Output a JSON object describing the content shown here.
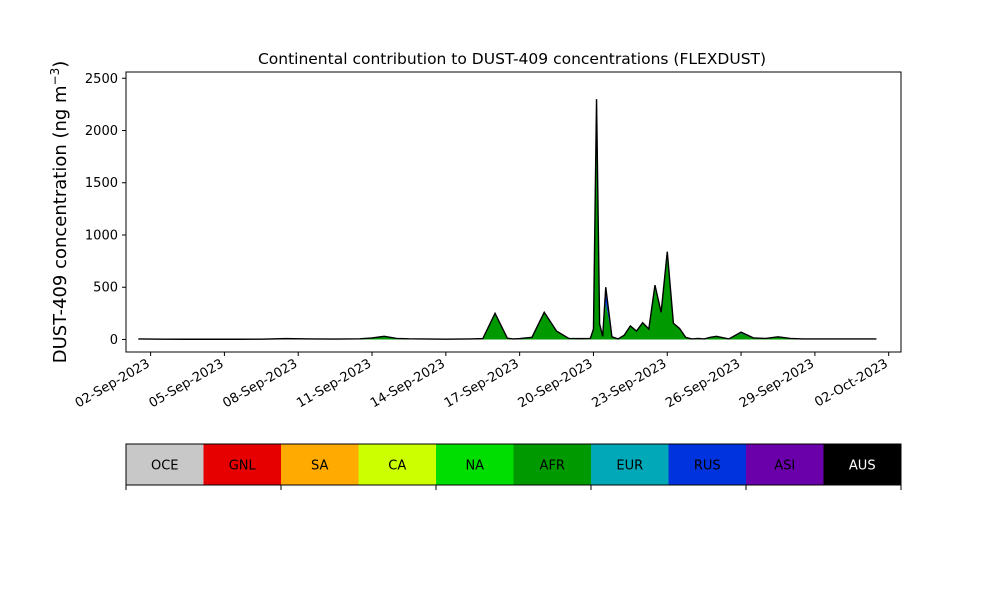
{
  "chart_data": {
    "type": "area",
    "title": "Continental contribution to DUST-409 concentrations (FLEXDUST)",
    "ylabel": "DUST-409 concentration (ng m",
    "ylabel_sup": "−3",
    "ylabel_close": ")",
    "ylim": [
      -120,
      2560
    ],
    "yticks": [
      0,
      500,
      1000,
      1500,
      2000,
      2500
    ],
    "x_range": [
      "2023-09-01T00:00",
      "2023-10-02T12:00"
    ],
    "xticks": [
      "02-Sep-2023",
      "05-Sep-2023",
      "08-Sep-2023",
      "11-Sep-2023",
      "14-Sep-2023",
      "17-Sep-2023",
      "20-Sep-2023",
      "23-Sep-2023",
      "26-Sep-2023",
      "29-Sep-2023",
      "02-Oct-2023"
    ],
    "xtick_dates": [
      "2023-09-02",
      "2023-09-05",
      "2023-09-08",
      "2023-09-11",
      "2023-09-14",
      "2023-09-17",
      "2023-09-20",
      "2023-09-23",
      "2023-09-26",
      "2023-09-29",
      "2023-10-02"
    ],
    "grid": false,
    "legend_placement": "bottom",
    "x": [
      "2023-09-01T12:00",
      "2023-09-02T12:00",
      "2023-09-03T12:00",
      "2023-09-04T12:00",
      "2023-09-05T12:00",
      "2023-09-06T12:00",
      "2023-09-07T12:00",
      "2023-09-08T12:00",
      "2023-09-09T12:00",
      "2023-09-10T12:00",
      "2023-09-11T00:00",
      "2023-09-11T12:00",
      "2023-09-12T00:00",
      "2023-09-12T12:00",
      "2023-09-13T00:00",
      "2023-09-13T12:00",
      "2023-09-14T00:00",
      "2023-09-14T12:00",
      "2023-09-15T00:00",
      "2023-09-15T12:00",
      "2023-09-16T00:00",
      "2023-09-16T12:00",
      "2023-09-16T18:00",
      "2023-09-17T00:00",
      "2023-09-17T12:00",
      "2023-09-18T00:00",
      "2023-09-18T12:00",
      "2023-09-19T00:00",
      "2023-09-19T12:00",
      "2023-09-19T21:00",
      "2023-09-20T00:00",
      "2023-09-20T03:00",
      "2023-09-20T06:00",
      "2023-09-20T09:00",
      "2023-09-20T12:00",
      "2023-09-20T18:00",
      "2023-09-21T00:00",
      "2023-09-21T06:00",
      "2023-09-21T12:00",
      "2023-09-21T18:00",
      "2023-09-22T00:00",
      "2023-09-22T06:00",
      "2023-09-22T12:00",
      "2023-09-22T18:00",
      "2023-09-23T00:00",
      "2023-09-23T06:00",
      "2023-09-23T12:00",
      "2023-09-23T18:00",
      "2023-09-24T00:00",
      "2023-09-24T06:00",
      "2023-09-24T12:00",
      "2023-09-24T18:00",
      "2023-09-25T00:00",
      "2023-09-25T12:00",
      "2023-09-26T00:00",
      "2023-09-26T12:00",
      "2023-09-27T00:00",
      "2023-09-27T12:00",
      "2023-09-28T00:00",
      "2023-09-28T12:00",
      "2023-09-29T00:00",
      "2023-09-29T12:00",
      "2023-09-30T00:00",
      "2023-09-30T12:00",
      "2023-10-01T00:00",
      "2023-10-01T12:00"
    ],
    "series": [
      {
        "name": "OCE",
        "color": "#c8c8c8",
        "values": [
          0,
          0,
          0,
          0,
          0,
          0,
          0,
          0,
          0,
          0,
          0,
          0,
          0,
          0,
          0,
          0,
          0,
          0,
          0,
          0,
          0,
          0,
          0,
          0,
          0,
          0,
          0,
          0,
          0,
          0,
          0,
          0,
          0,
          0,
          0,
          0,
          0,
          0,
          0,
          0,
          0,
          0,
          0,
          0,
          0,
          0,
          0,
          0,
          0,
          0,
          0,
          0,
          0,
          0,
          0,
          0,
          0,
          0,
          0,
          0,
          0,
          0,
          0,
          0,
          0,
          0
        ]
      },
      {
        "name": "GNL",
        "color": "#e60000",
        "values": [
          0,
          0,
          0,
          0,
          0,
          0,
          0,
          0,
          0,
          0,
          0,
          0,
          0,
          0,
          0,
          0,
          0,
          0,
          0,
          0,
          0,
          0,
          0,
          0,
          0,
          0,
          0,
          0,
          0,
          0,
          0,
          0,
          0,
          0,
          0,
          0,
          0,
          0,
          0,
          0,
          0,
          0,
          0,
          0,
          0,
          0,
          0,
          0,
          0,
          0,
          0,
          0,
          0,
          0,
          0,
          0,
          0,
          0,
          0,
          0,
          0,
          0,
          0,
          0,
          0,
          0
        ]
      },
      {
        "name": "SA",
        "color": "#ffaa00",
        "values": [
          0,
          0,
          0,
          0,
          0,
          0,
          0,
          0,
          0,
          0,
          0,
          0,
          0,
          0,
          0,
          0,
          0,
          0,
          0,
          0,
          0,
          0,
          0,
          0,
          0,
          0,
          0,
          0,
          0,
          0,
          0,
          0,
          0,
          0,
          0,
          0,
          0,
          0,
          0,
          0,
          0,
          0,
          0,
          0,
          0,
          0,
          0,
          0,
          0,
          0,
          0,
          0,
          0,
          0,
          0,
          0,
          0,
          0,
          0,
          0,
          0,
          0,
          0,
          0,
          0,
          0
        ]
      },
      {
        "name": "CA",
        "color": "#ccff00",
        "values": [
          0,
          0,
          0,
          0,
          0,
          0,
          0,
          0,
          0,
          0,
          0,
          0,
          0,
          0,
          0,
          0,
          0,
          0,
          0,
          0,
          0,
          0,
          0,
          0,
          0,
          0,
          0,
          0,
          0,
          0,
          0,
          0,
          0,
          0,
          0,
          0,
          0,
          0,
          0,
          0,
          0,
          0,
          0,
          0,
          0,
          0,
          0,
          0,
          0,
          0,
          0,
          0,
          0,
          0,
          0,
          0,
          0,
          0,
          0,
          0,
          0,
          0,
          0,
          0,
          0,
          0
        ]
      },
      {
        "name": "NA",
        "color": "#00dd00",
        "values": [
          0,
          0,
          0,
          0,
          0,
          0,
          0,
          0,
          0,
          0,
          0,
          0,
          0,
          0,
          0,
          0,
          0,
          0,
          0,
          0,
          0,
          0,
          0,
          0,
          0,
          0,
          0,
          0,
          0,
          0,
          0,
          0,
          0,
          0,
          0,
          0,
          0,
          0,
          0,
          0,
          0,
          0,
          0,
          0,
          0,
          0,
          0,
          0,
          0,
          0,
          0,
          0,
          0,
          0,
          0,
          0,
          0,
          0,
          0,
          0,
          0,
          0,
          0,
          0,
          0,
          0
        ]
      },
      {
        "name": "AFR",
        "color": "#009900",
        "values": [
          5,
          3,
          2,
          2,
          2,
          3,
          8,
          5,
          4,
          6,
          15,
          30,
          10,
          6,
          5,
          4,
          3,
          4,
          5,
          8,
          250,
          12,
          5,
          8,
          20,
          260,
          80,
          10,
          8,
          10,
          100,
          2300,
          150,
          30,
          350,
          20,
          5,
          40,
          130,
          80,
          160,
          100,
          500,
          250,
          800,
          150,
          100,
          20,
          5,
          10,
          5,
          20,
          30,
          5,
          60,
          10,
          10,
          20,
          10,
          5,
          5,
          5,
          5,
          5,
          5,
          5
        ]
      },
      {
        "name": "EUR",
        "color": "#00a8b8",
        "values": [
          0,
          0,
          0,
          0,
          0,
          0,
          0,
          0,
          0,
          0,
          0,
          0,
          0,
          0,
          0,
          0,
          0,
          0,
          0,
          0,
          0,
          0,
          0,
          0,
          0,
          0,
          0,
          0,
          0,
          0,
          0,
          0,
          0,
          0,
          0,
          0,
          0,
          0,
          0,
          0,
          0,
          0,
          0,
          0,
          0,
          0,
          0,
          0,
          0,
          0,
          0,
          0,
          0,
          0,
          0,
          0,
          0,
          0,
          0,
          0,
          0,
          0,
          0,
          0,
          0,
          0
        ]
      },
      {
        "name": "RUS",
        "color": "#0033dd",
        "values": [
          0,
          0,
          0,
          0,
          0,
          0,
          0,
          0,
          0,
          0,
          0,
          0,
          0,
          0,
          0,
          0,
          0,
          0,
          0,
          0,
          0,
          0,
          0,
          0,
          0,
          0,
          0,
          0,
          0,
          0,
          0,
          0,
          0,
          0,
          150,
          5,
          0,
          0,
          0,
          0,
          0,
          0,
          20,
          10,
          40,
          5,
          5,
          0,
          0,
          0,
          0,
          0,
          0,
          0,
          10,
          5,
          0,
          5,
          0,
          0,
          0,
          0,
          0,
          0,
          0,
          0
        ]
      },
      {
        "name": "ASI",
        "color": "#6a00aa",
        "values": [
          0,
          0,
          0,
          0,
          0,
          0,
          0,
          0,
          0,
          0,
          0,
          0,
          0,
          0,
          0,
          0,
          0,
          0,
          0,
          0,
          0,
          0,
          0,
          0,
          0,
          0,
          0,
          0,
          0,
          0,
          0,
          0,
          0,
          0,
          0,
          0,
          0,
          0,
          0,
          0,
          0,
          0,
          0,
          0,
          0,
          0,
          0,
          0,
          0,
          0,
          0,
          0,
          0,
          0,
          0,
          0,
          0,
          0,
          0,
          0,
          0,
          0,
          0,
          0,
          0,
          0
        ]
      },
      {
        "name": "AUS",
        "color": "#000000",
        "values": [
          0,
          0,
          0,
          0,
          0,
          0,
          0,
          0,
          0,
          0,
          0,
          0,
          0,
          0,
          0,
          0,
          0,
          0,
          0,
          0,
          0,
          0,
          0,
          0,
          0,
          0,
          0,
          0,
          0,
          0,
          0,
          0,
          0,
          0,
          0,
          0,
          0,
          0,
          0,
          0,
          0,
          0,
          0,
          0,
          0,
          0,
          0,
          0,
          0,
          0,
          0,
          0,
          0,
          0,
          0,
          0,
          0,
          0,
          0,
          0,
          0,
          0,
          0,
          0,
          0,
          0
        ]
      }
    ],
    "legend": [
      {
        "label": "OCE",
        "color": "#c8c8c8",
        "text_color": "#000000"
      },
      {
        "label": "GNL",
        "color": "#e60000",
        "text_color": "#000000"
      },
      {
        "label": "SA",
        "color": "#ffaa00",
        "text_color": "#000000"
      },
      {
        "label": "CA",
        "color": "#ccff00",
        "text_color": "#000000"
      },
      {
        "label": "NA",
        "color": "#00dd00",
        "text_color": "#000000"
      },
      {
        "label": "AFR",
        "color": "#009900",
        "text_color": "#000000"
      },
      {
        "label": "EUR",
        "color": "#00a8b8",
        "text_color": "#000000"
      },
      {
        "label": "RUS",
        "color": "#0033dd",
        "text_color": "#000000"
      },
      {
        "label": "ASI",
        "color": "#6a00aa",
        "text_color": "#000000"
      },
      {
        "label": "AUS",
        "color": "#000000",
        "text_color": "#ffffff"
      }
    ]
  }
}
